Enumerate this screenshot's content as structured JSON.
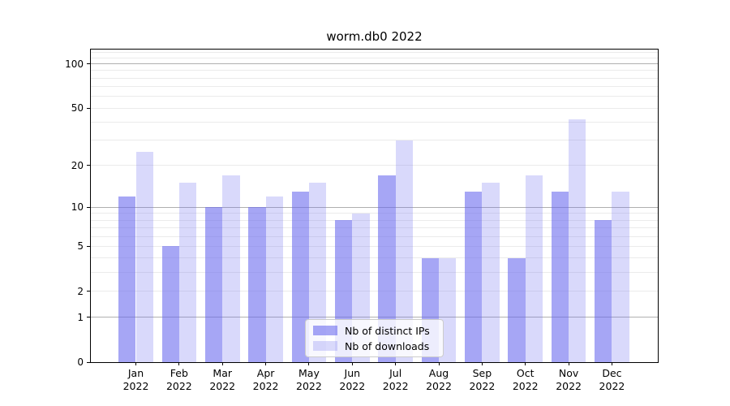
{
  "title": "worm.db0 2022",
  "chart_data": {
    "type": "bar",
    "title": "worm.db0 2022",
    "categories": [
      "Jan",
      "Feb",
      "Mar",
      "Apr",
      "May",
      "Jun",
      "Jul",
      "Aug",
      "Sep",
      "Oct",
      "Nov",
      "Dec"
    ],
    "x_sublabel": "2022",
    "series": [
      {
        "name": "Nb of distinct IPs",
        "color": "rgba(102,102,238,0.58)",
        "values": [
          12,
          5,
          10,
          10,
          13,
          8,
          17,
          4,
          13,
          4,
          13,
          8
        ]
      },
      {
        "name": "Nb of downloads",
        "color": "rgba(102,102,238,0.25)",
        "values": [
          25,
          15,
          17,
          12,
          15,
          9,
          30,
          4,
          15,
          17,
          42,
          13
        ]
      }
    ],
    "yscale": "log1p",
    "ylim": [
      0,
      125
    ],
    "y_tick_values": [
      0,
      1,
      2,
      5,
      10,
      20,
      50,
      100
    ],
    "y_tick_labels": [
      "0",
      "1",
      "2",
      "5",
      "10",
      "20",
      "50",
      "100"
    ],
    "y_major_gridlines": [
      1,
      10,
      100
    ],
    "y_minor_gridlines": [
      2,
      3,
      4,
      5,
      6,
      7,
      8,
      9,
      20,
      30,
      40,
      50,
      60,
      70,
      80,
      90,
      110,
      120
    ],
    "grid": true,
    "legend_position": "lower center",
    "colors": {
      "grid_major": "#b0b0b0",
      "grid_minor": "#ebebeb",
      "axis": "#000000"
    }
  }
}
